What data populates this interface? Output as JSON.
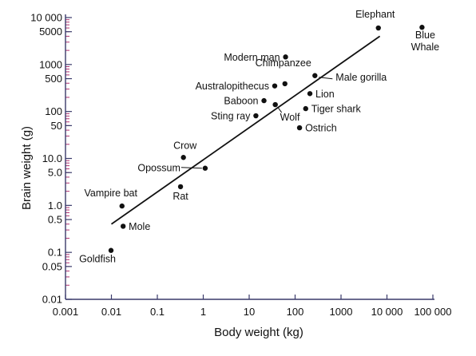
{
  "chart_data": {
    "type": "scatter",
    "xlabel": "Body weight (kg)",
    "ylabel": "Brain weight (g)",
    "xscale": "log",
    "yscale": "log",
    "xlim": [
      0.001,
      100000
    ],
    "ylim": [
      0.01,
      10000
    ],
    "x_ticks": [
      {
        "value": 0.001,
        "label": "0.001"
      },
      {
        "value": 0.01,
        "label": "0.01"
      },
      {
        "value": 0.1,
        "label": "0.1"
      },
      {
        "value": 1,
        "label": "1"
      },
      {
        "value": 10,
        "label": "10"
      },
      {
        "value": 100,
        "label": "100"
      },
      {
        "value": 1000,
        "label": "1000"
      },
      {
        "value": 10000,
        "label": "10 000"
      },
      {
        "value": 100000,
        "label": "100 000"
      }
    ],
    "y_ticks": [
      {
        "value": 0.01,
        "label": "0.01"
      },
      {
        "value": 0.05,
        "label": "0.05"
      },
      {
        "value": 0.1,
        "label": "0.1"
      },
      {
        "value": 0.5,
        "label": "0.5"
      },
      {
        "value": 1,
        "label": "1.0"
      },
      {
        "value": 5,
        "label": "5.0"
      },
      {
        "value": 10,
        "label": "10.0"
      },
      {
        "value": 50,
        "label": "50"
      },
      {
        "value": 100,
        "label": "100"
      },
      {
        "value": 500,
        "label": "500"
      },
      {
        "value": 1000,
        "label": "1000"
      },
      {
        "value": 5000,
        "label": "5000"
      },
      {
        "value": 10000,
        "label": "10 000"
      }
    ],
    "points": [
      {
        "label": "Elephant",
        "x": 6500,
        "y": 6000
      },
      {
        "label": "Blue Whale",
        "x": 58000,
        "y": 6200
      },
      {
        "label": "Modern man",
        "x": 62,
        "y": 1450
      },
      {
        "label": "Chimpanzee",
        "x": 60,
        "y": 390
      },
      {
        "label": "Australopithecus",
        "x": 36,
        "y": 350
      },
      {
        "label": "Male gorilla",
        "x": 270,
        "y": 580
      },
      {
        "label": "Lion",
        "x": 210,
        "y": 240
      },
      {
        "label": "Baboon",
        "x": 21,
        "y": 170
      },
      {
        "label": "Wolf",
        "x": 37,
        "y": 140
      },
      {
        "label": "Tiger shark",
        "x": 170,
        "y": 115
      },
      {
        "label": "Sting ray",
        "x": 14,
        "y": 81
      },
      {
        "label": "Ostrich",
        "x": 125,
        "y": 45
      },
      {
        "label": "Crow",
        "x": 0.37,
        "y": 10.5
      },
      {
        "label": "Opossum",
        "x": 1.1,
        "y": 6.2
      },
      {
        "label": "Rat",
        "x": 0.32,
        "y": 2.5
      },
      {
        "label": "Vampire bat",
        "x": 0.017,
        "y": 0.97
      },
      {
        "label": "Mole",
        "x": 0.018,
        "y": 0.36
      },
      {
        "label": "Goldfish",
        "x": 0.0098,
        "y": 0.11
      }
    ],
    "trend_line": {
      "x": [
        0.01,
        7000
      ],
      "y": [
        0.4,
        4000
      ]
    },
    "grid": false,
    "legend": "none",
    "colors": {
      "points": "#111111",
      "line": "#111111",
      "axis": "#3a3a6a",
      "minor_ticks": "#b03070"
    }
  }
}
